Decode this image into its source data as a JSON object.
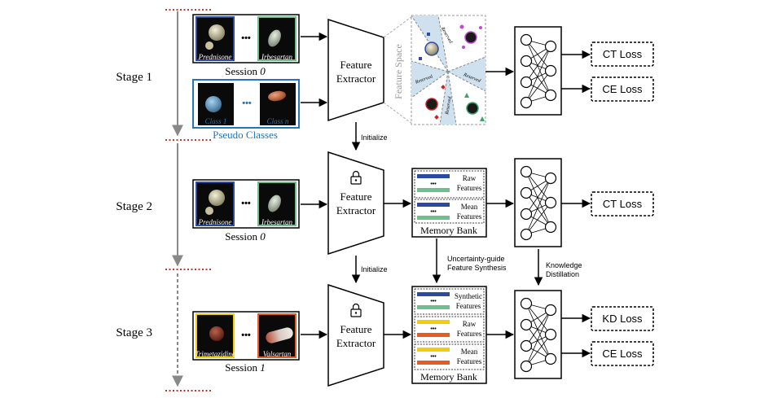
{
  "colors": {
    "pseudo_blue": "#2277bb",
    "raw_bar": "#2c4aa0",
    "feat_green": "#6fbf8e",
    "yellow": "#f2cc0c",
    "orange": "#e85a22",
    "dotted_red": "#c0392b",
    "space_blue": "#cfe0ef"
  },
  "stages": {
    "s1": "Stage 1",
    "s2": "Stage 2",
    "s3": "Stage 3"
  },
  "stage1": {
    "img_left": "Prednisone",
    "img_right": "Irbesartan",
    "ellipsis": "•••",
    "session": "Session",
    "session_num": "0",
    "pseudo_left": "Class 1",
    "pseudo_right": "Class n",
    "pseudo_label": "Pseudo Classes",
    "extractor_l1": "Feature",
    "extractor_l2": "Extractor",
    "feature_space": "Feature Space",
    "reserved": "Reserved",
    "loss_top": "CT Loss",
    "loss_bottom": "CE Loss"
  },
  "stage2": {
    "img_left": "Prednisone",
    "img_right": "Irbesartan",
    "session": "Session",
    "session_num": "0",
    "extractor_l1": "Feature",
    "extractor_l2": "Extractor",
    "raw_l1": "Raw",
    "raw_l2": "Features",
    "mean_l1": "Mean",
    "mean_l2": "Features",
    "memory_bank": "Memory Bank",
    "loss": "CT Loss"
  },
  "stage3": {
    "img_left": "Trimetazidine",
    "img_right": "Valsartan",
    "session": "Session",
    "session_num": "1",
    "extractor_l1": "Feature",
    "extractor_l2": "Extractor",
    "synth_l1": "Synthetic",
    "synth_l2": "Features",
    "raw_l1": "Raw",
    "raw_l2": "Features",
    "mean_l1": "Mean",
    "mean_l2": "Features",
    "memory_bank": "Memory Bank",
    "loss_top": "KD Loss",
    "loss_bottom": "CE Loss"
  },
  "arrows": {
    "initialize_1": "Initialize",
    "initialize_2": "Initialize",
    "uncertainty_l1": "Uncertainty-guide",
    "uncertainty_l2": "Feature Synthesis",
    "kd_l1": "Knowledge",
    "kd_l2": "Distillation"
  }
}
